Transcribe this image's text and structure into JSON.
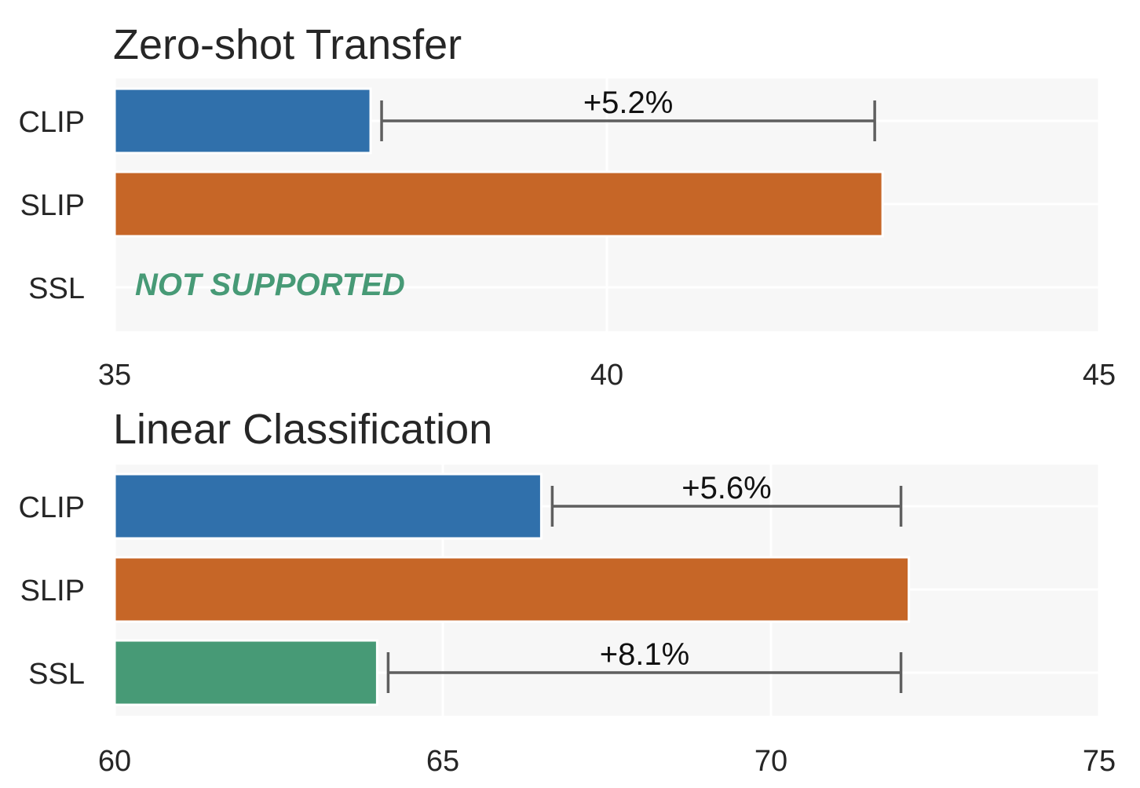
{
  "chart_data": [
    {
      "type": "bar",
      "orientation": "horizontal",
      "title": "Zero-shot Transfer",
      "categories": [
        "CLIP",
        "SLIP",
        "SSL"
      ],
      "values": [
        37.6,
        42.8,
        null
      ],
      "colors": [
        "#3070ab",
        "#c66627",
        "#479a76"
      ],
      "xlim": [
        35,
        45
      ],
      "xticks": [
        "35",
        "40",
        "45"
      ],
      "grid": true,
      "annotations": [
        {
          "label": "+5.2%",
          "from_category": "CLIP",
          "from": 37.6,
          "to": 42.8
        }
      ],
      "notes": [
        {
          "category": "SSL",
          "text": "NOT SUPPORTED",
          "color": "#479a76"
        }
      ]
    },
    {
      "type": "bar",
      "orientation": "horizontal",
      "title": "Linear Classification",
      "categories": [
        "CLIP",
        "SLIP",
        "SSL"
      ],
      "values": [
        66.5,
        72.1,
        64.0
      ],
      "colors": [
        "#3070ab",
        "#c66627",
        "#479a76"
      ],
      "xlim": [
        60,
        75
      ],
      "xticks": [
        "60",
        "65",
        "70",
        "75"
      ],
      "grid": true,
      "annotations": [
        {
          "label": "+5.6%",
          "from_category": "CLIP",
          "from": 66.5,
          "to": 72.1
        },
        {
          "label": "+8.1%",
          "from_category": "SSL",
          "from": 64.0,
          "to": 72.1
        }
      ],
      "notes": []
    }
  ]
}
